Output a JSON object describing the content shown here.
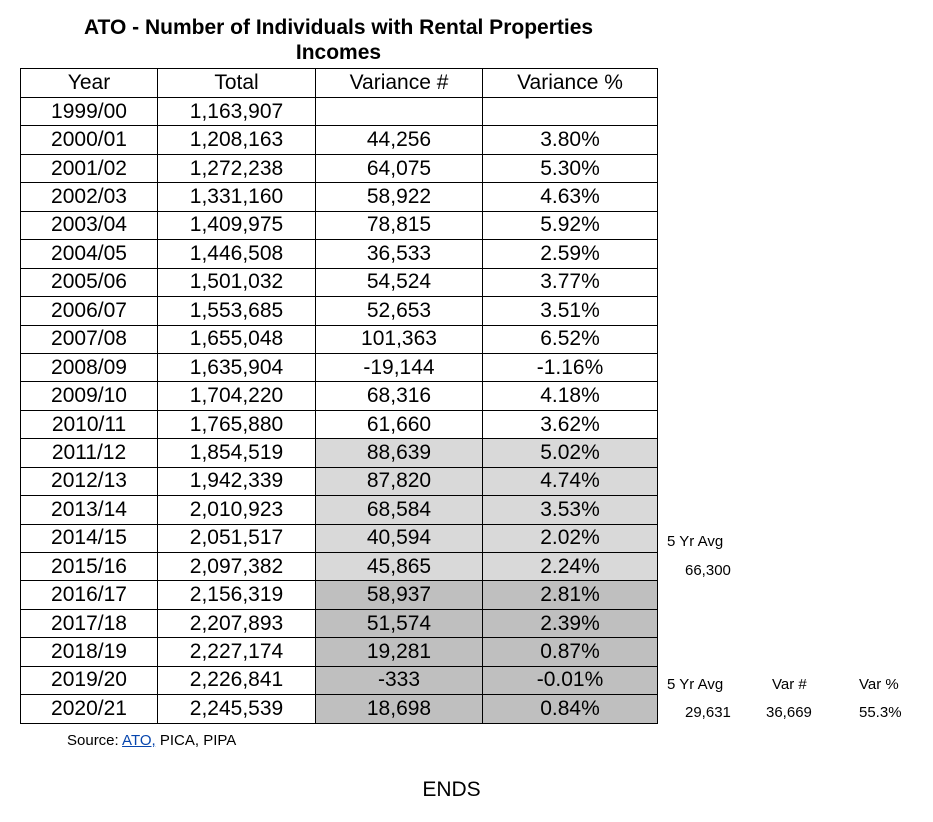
{
  "header": {
    "title_line1": "ATO - Number of Individuals with Rental Properties",
    "title_line2": "Incomes"
  },
  "table": {
    "header": [
      "Year",
      "Total",
      "Variance #",
      "Variance %"
    ],
    "rows": [
      [
        "1999/00",
        "1,163,907"
      ],
      [
        "2000/01",
        "1,208,163",
        "44,256",
        "3.80%"
      ],
      [
        "2001/02",
        "1,272,238",
        "64,075",
        "5.30%"
      ],
      [
        "2002/03",
        "1,331,160",
        "58,922",
        "4.63%"
      ],
      [
        "2003/04",
        "1,409,975",
        "78,815",
        "5.92%"
      ],
      [
        "2004/05",
        "1,446,508",
        "36,533",
        "2.59%"
      ],
      [
        "2005/06",
        "1,501,032",
        "54,524",
        "3.77%"
      ],
      [
        "2006/07",
        "1,553,685",
        "52,653",
        "3.51%"
      ],
      [
        "2007/08",
        "1,655,048",
        "101,363",
        "6.52%"
      ],
      [
        "2008/09",
        "1,635,904",
        "-19,144",
        "-1.16%"
      ],
      [
        "2009/10",
        "1,704,220",
        "68,316",
        "4.18%"
      ],
      [
        "2010/11",
        "1,765,880",
        "61,660",
        "3.62%"
      ],
      [
        "2011/12",
        "1,854,519",
        "88,639",
        "5.02%"
      ],
      [
        "2012/13",
        "1,942,339",
        "87,820",
        "4.74%"
      ],
      [
        "2013/14",
        "2,010,923",
        "68,584",
        "3.53%"
      ],
      [
        "2014/15",
        "2,051,517",
        "40,594",
        "2.02%"
      ],
      [
        "2015/16",
        "2,097,382",
        "45,865",
        "2.24%"
      ],
      [
        "2016/17",
        "2,156,319",
        "58,937",
        "2.81%"
      ],
      [
        "2017/18",
        "2,207,893",
        "51,574",
        "2.39%"
      ],
      [
        "2018/19",
        "2,227,174",
        "19,281",
        "0.87%"
      ],
      [
        "2019/20",
        "2,226,841",
        "-333",
        "-0.01%"
      ],
      [
        "2020/21",
        "2,245,539",
        "18,698",
        "0.84%"
      ]
    ]
  },
  "notes": {
    "first": {
      "label": "5 Yr Avg",
      "value": "66,300"
    },
    "second": {
      "label": "5 Yr Avg",
      "value": "29,631",
      "var_label": "Var #",
      "var_value": "36,669",
      "pct_label": "Var %",
      "pct_value": "55.3%"
    }
  },
  "source": {
    "prefix": "Source:",
    "link": "ATO,",
    "suffix": "PICA, PIPA"
  },
  "footer": "ENDS"
}
